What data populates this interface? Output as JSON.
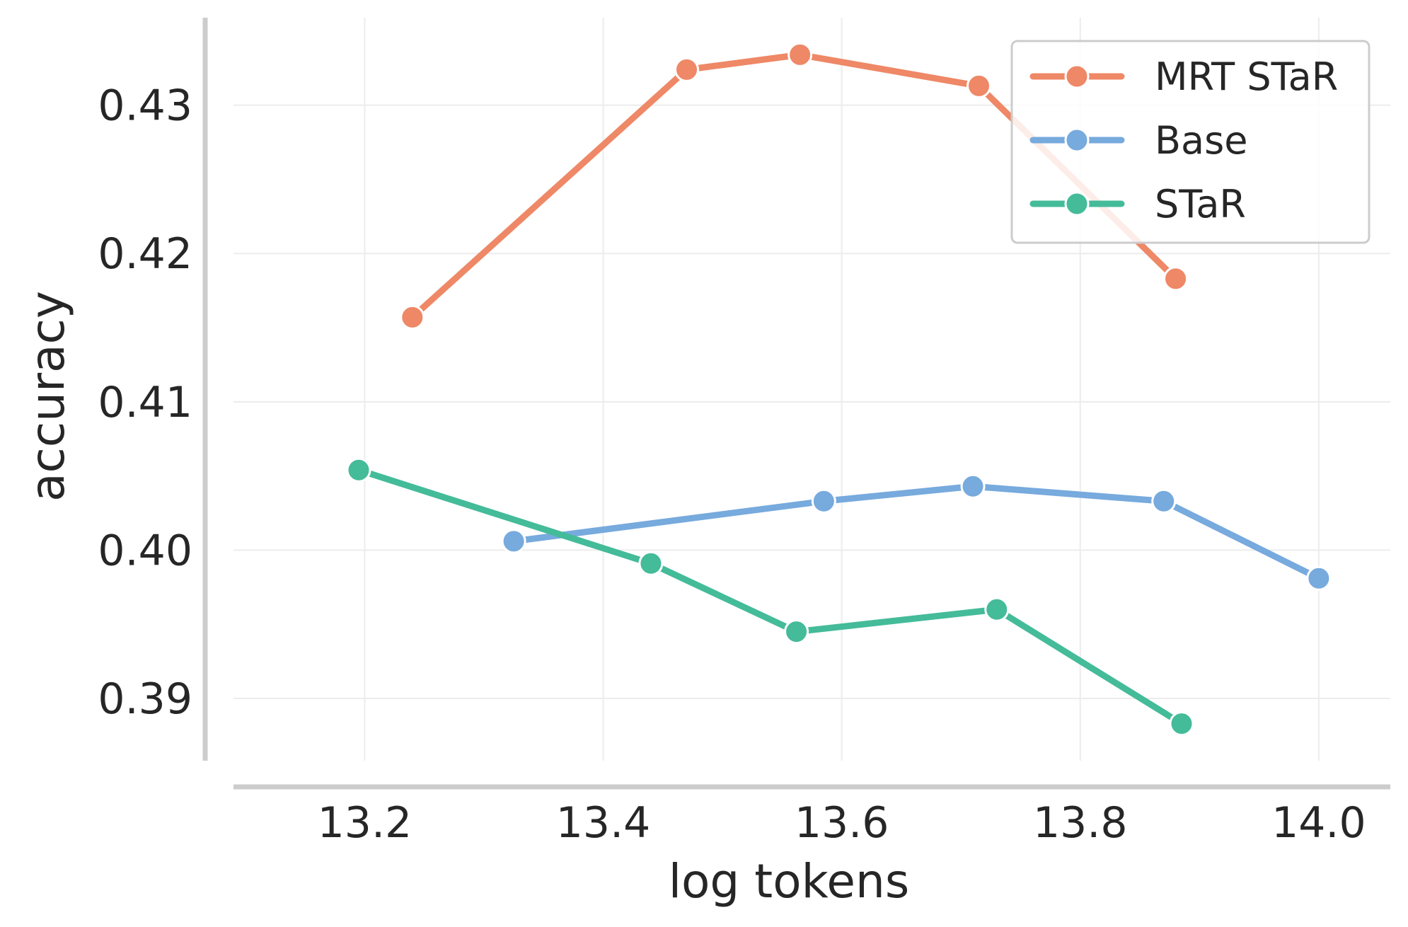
{
  "chart_data": {
    "type": "line",
    "xlabel": "log tokens",
    "ylabel": "accuracy",
    "xlim": [
      13.09,
      14.06
    ],
    "ylim": [
      0.3858,
      0.4359
    ],
    "xticks": [
      13.2,
      13.4,
      13.6,
      13.8,
      14.0
    ],
    "xtick_labels": [
      "13.2",
      "13.4",
      "13.6",
      "13.8",
      "14.0"
    ],
    "yticks": [
      0.39,
      0.4,
      0.41,
      0.42,
      0.43
    ],
    "ytick_labels": [
      "0.39",
      "0.40",
      "0.41",
      "0.42",
      "0.43"
    ],
    "grid": true,
    "legend_position": "top-right",
    "series": [
      {
        "name": "MRT STaR",
        "color": "#EE8866",
        "x": [
          13.24,
          13.47,
          13.565,
          13.715,
          13.88
        ],
        "y": [
          0.4157,
          0.4324,
          0.4334,
          0.4313,
          0.4183
        ]
      },
      {
        "name": "Base",
        "color": "#77AADD",
        "x": [
          13.325,
          13.585,
          13.71,
          13.87,
          14.0
        ],
        "y": [
          0.4006,
          0.4033,
          0.4043,
          0.4033,
          0.3981
        ]
      },
      {
        "name": "STaR",
        "color": "#44BB99",
        "x": [
          13.195,
          13.44,
          13.562,
          13.73,
          13.885
        ],
        "y": [
          0.4054,
          0.3991,
          0.3945,
          0.396,
          0.3883
        ]
      }
    ]
  }
}
